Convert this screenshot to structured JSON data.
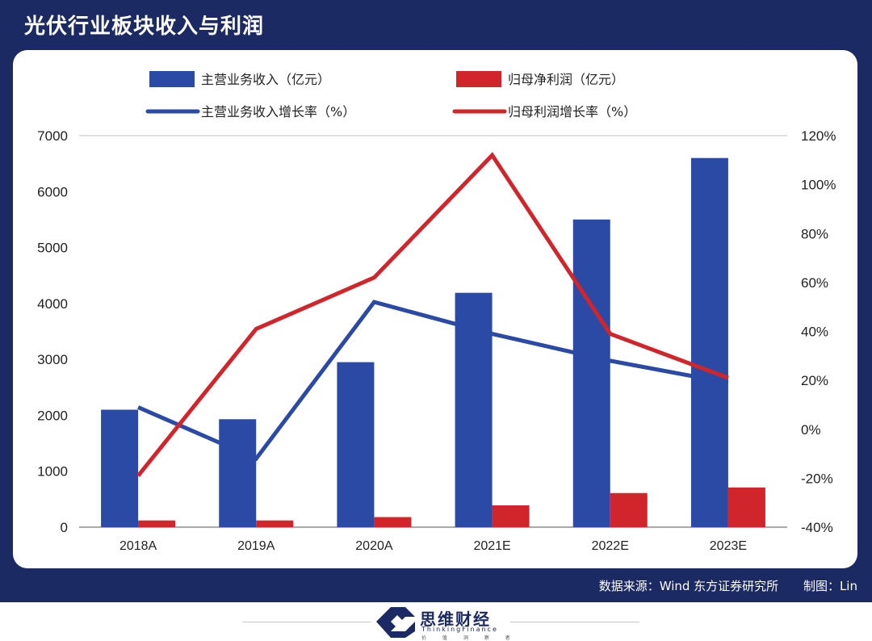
{
  "header": {
    "title": "光伏行业板块收入与利润"
  },
  "footer": {
    "source": "数据来源：Wind  东方证券研究所",
    "credit": "制图：Lin"
  },
  "brand": {
    "name": "思维财经",
    "english": "ThinkingFinance",
    "tagline": "价 值 洞 察 者"
  },
  "colors": {
    "frame": "#1b2a63",
    "blue": "#2a4aa6",
    "red": "#d0262b"
  },
  "chart_data": {
    "type": "bar",
    "categories": [
      "2018A",
      "2019A",
      "2020A",
      "2021E",
      "2022E",
      "2023E"
    ],
    "series": [
      {
        "name": "主营业务收入（亿元）",
        "type": "bar",
        "axis": "left",
        "color": "#2a4aa6",
        "values": [
          2100,
          1930,
          2950,
          4190,
          5500,
          6600
        ]
      },
      {
        "name": "归母净利润（亿元）",
        "type": "bar",
        "axis": "left",
        "color": "#d0262b",
        "values": [
          120,
          120,
          180,
          390,
          610,
          710
        ]
      },
      {
        "name": "主营业务收入增长率（%）",
        "type": "line",
        "axis": "right",
        "color": "#2a4aa6",
        "values": [
          9,
          -12,
          52,
          39,
          28,
          19
        ]
      },
      {
        "name": "归母利润增长率（%）",
        "type": "line",
        "axis": "right",
        "color": "#d0262b",
        "values": [
          -19,
          41,
          62,
          112,
          39,
          21
        ]
      }
    ],
    "y_left": {
      "min": 0,
      "max": 7000,
      "ticks": [
        "0",
        "1000",
        "2000",
        "3000",
        "4000",
        "5000",
        "6000",
        "7000"
      ]
    },
    "y_right": {
      "min": -40,
      "max": 120,
      "ticks": [
        "-40%",
        "-20%",
        "0%",
        "20%",
        "40%",
        "60%",
        "80%",
        "100%",
        "120%"
      ]
    },
    "legend": [
      "主营业务收入（亿元）",
      "归母净利润（亿元）",
      "主营业务收入增长率（%）",
      "归母利润增长率（%）"
    ]
  }
}
